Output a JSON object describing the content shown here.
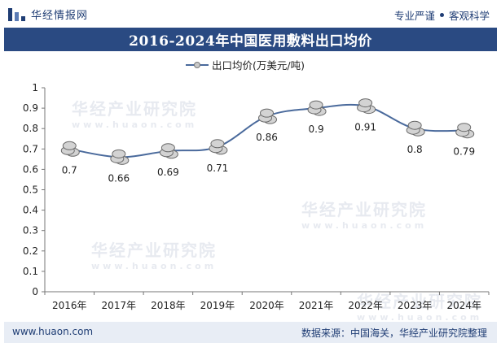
{
  "header": {
    "brand_name": "华经情报网",
    "tagline_left": "专业严谨",
    "tagline_right": "客观科学"
  },
  "watermark": {
    "text": "华经产业研究院",
    "url": "www.huaon.com"
  },
  "footer": {
    "url": "www.huaon.com",
    "source": "数据来源：中国海关，华经产业研究院整理"
  },
  "chart_data": {
    "type": "line",
    "title": "2016-2024年中国医用敷料出口均价",
    "categories": [
      "2016年",
      "2017年",
      "2018年",
      "2019年",
      "2020年",
      "2021年",
      "2022年",
      "2023年",
      "2024年"
    ],
    "series": [
      {
        "name": "出口均价(万美元/吨)",
        "values": [
          0.7,
          0.66,
          0.69,
          0.71,
          0.86,
          0.9,
          0.91,
          0.8,
          0.79
        ]
      }
    ],
    "value_labels": [
      "0.7",
      "0.66",
      "0.69",
      "0.71",
      "0.86",
      "0.9",
      "0.91",
      "0.8",
      "0.79"
    ],
    "ylim": [
      0,
      1
    ],
    "yticks": [
      "0",
      "0.1",
      "0.2",
      "0.3",
      "0.4",
      "0.5",
      "0.6",
      "0.7",
      "0.8",
      "0.9",
      "1"
    ],
    "grid": false,
    "legend_position": "top",
    "colors": {
      "line": "#4a6a9c",
      "marker": "#c9c9c9",
      "title_bg": "#2a4a82"
    }
  }
}
